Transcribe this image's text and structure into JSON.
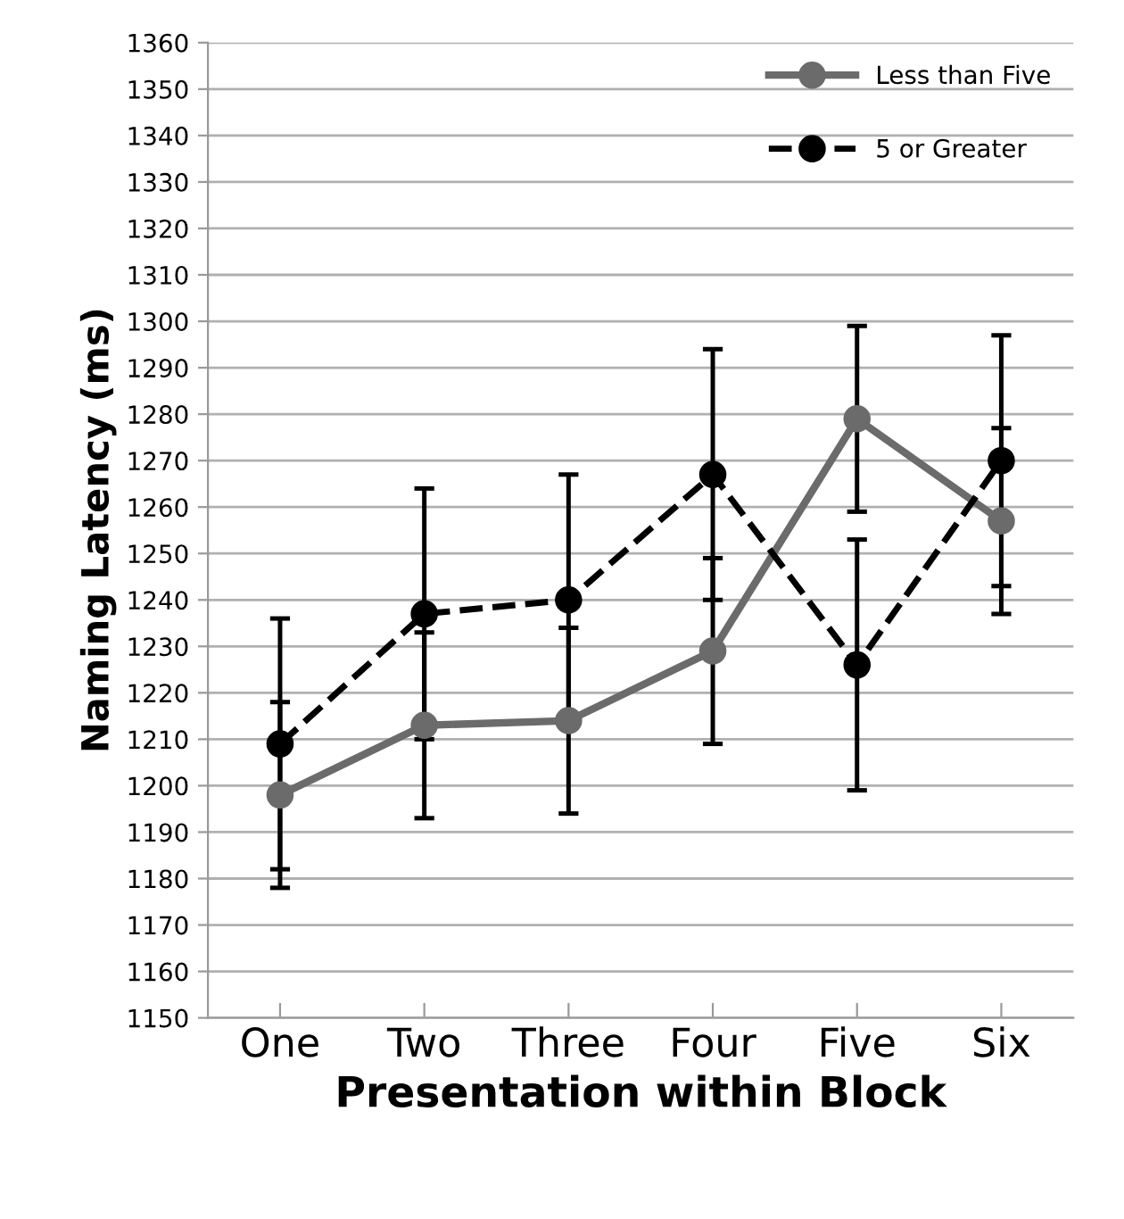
{
  "chart_data": {
    "type": "line",
    "xlabel": "Presentation within Block",
    "ylabel": "Naming Latency (ms)",
    "categories": [
      "One",
      "Two",
      "Three",
      "Four",
      "Five",
      "Six"
    ],
    "series": [
      {
        "name": "Less than Five",
        "color": "#6b6b6b",
        "line_style": "solid",
        "values": [
          1198,
          1213,
          1214,
          1229,
          1279,
          1257
        ],
        "errors": [
          20,
          20,
          20,
          20,
          20,
          20
        ]
      },
      {
        "name": "5 or Greater",
        "color": "#000000",
        "line_style": "dashed",
        "values": [
          1209,
          1237,
          1240,
          1267,
          1226,
          1270
        ],
        "errors": [
          27,
          27,
          27,
          27,
          27,
          27
        ]
      }
    ],
    "ylim": [
      1150,
      1360
    ],
    "yticks": [
      1150,
      1160,
      1170,
      1180,
      1190,
      1200,
      1210,
      1220,
      1230,
      1240,
      1250,
      1260,
      1270,
      1280,
      1290,
      1300,
      1310,
      1320,
      1330,
      1340,
      1350,
      1360
    ],
    "grid": "y",
    "legend": "top right",
    "marker": "circle"
  }
}
